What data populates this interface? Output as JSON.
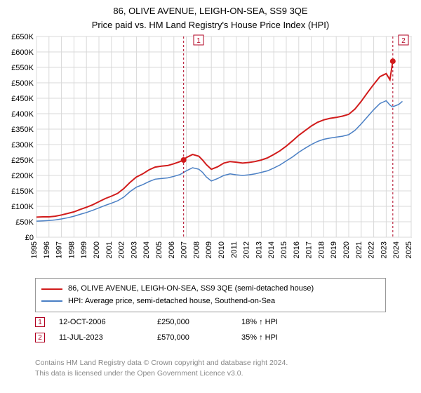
{
  "title": {
    "line1": "86, OLIVE AVENUE, LEIGH-ON-SEA, SS9 3QE",
    "line2": "Price paid vs. HM Land Registry's House Price Index (HPI)"
  },
  "chart": {
    "type": "line",
    "background_color": "#ffffff",
    "grid_color": "#d8d8d8",
    "x": {
      "min": 1995,
      "max": 2025,
      "tick_step": 1,
      "ticks": [
        1995,
        1996,
        1997,
        1998,
        1999,
        2000,
        2001,
        2002,
        2003,
        2004,
        2005,
        2006,
        2007,
        2008,
        2009,
        2010,
        2011,
        2012,
        2013,
        2014,
        2015,
        2016,
        2017,
        2018,
        2019,
        2020,
        2021,
        2022,
        2023,
        2024,
        2025
      ]
    },
    "y": {
      "min": 0,
      "max": 650000,
      "tick_step": 50000,
      "ticks": [
        0,
        50000,
        100000,
        150000,
        200000,
        250000,
        300000,
        350000,
        400000,
        450000,
        500000,
        550000,
        600000,
        650000
      ],
      "labels": [
        "£0",
        "£50K",
        "£100K",
        "£150K",
        "£200K",
        "£250K",
        "£300K",
        "£350K",
        "£400K",
        "£450K",
        "£500K",
        "£550K",
        "£600K",
        "£650K"
      ]
    },
    "series": [
      {
        "key": "property",
        "label": "86, OLIVE AVENUE, LEIGH-ON-SEA, SS9 3QE (semi-detached house)",
        "color": "#d11b1b",
        "line_width": 2,
        "data": [
          [
            1995.0,
            65000
          ],
          [
            1995.5,
            66000
          ],
          [
            1996.0,
            66000
          ],
          [
            1996.5,
            68000
          ],
          [
            1997.0,
            72000
          ],
          [
            1997.5,
            77000
          ],
          [
            1998.0,
            82000
          ],
          [
            1998.5,
            90000
          ],
          [
            1999.0,
            97000
          ],
          [
            1999.5,
            105000
          ],
          [
            2000.0,
            115000
          ],
          [
            2000.5,
            125000
          ],
          [
            2001.0,
            133000
          ],
          [
            2001.5,
            142000
          ],
          [
            2002.0,
            158000
          ],
          [
            2002.5,
            178000
          ],
          [
            2003.0,
            195000
          ],
          [
            2003.5,
            205000
          ],
          [
            2004.0,
            218000
          ],
          [
            2004.5,
            227000
          ],
          [
            2005.0,
            230000
          ],
          [
            2005.5,
            232000
          ],
          [
            2006.0,
            238000
          ],
          [
            2006.5,
            245000
          ],
          [
            2006.78,
            250000
          ],
          [
            2007.0,
            258000
          ],
          [
            2007.5,
            268000
          ],
          [
            2008.0,
            262000
          ],
          [
            2008.3,
            250000
          ],
          [
            2008.6,
            235000
          ],
          [
            2009.0,
            220000
          ],
          [
            2009.5,
            228000
          ],
          [
            2010.0,
            240000
          ],
          [
            2010.5,
            245000
          ],
          [
            2011.0,
            243000
          ],
          [
            2011.5,
            240000
          ],
          [
            2012.0,
            242000
          ],
          [
            2012.5,
            245000
          ],
          [
            2013.0,
            250000
          ],
          [
            2013.5,
            257000
          ],
          [
            2014.0,
            268000
          ],
          [
            2014.5,
            280000
          ],
          [
            2015.0,
            295000
          ],
          [
            2015.5,
            312000
          ],
          [
            2016.0,
            330000
          ],
          [
            2016.5,
            345000
          ],
          [
            2017.0,
            360000
          ],
          [
            2017.5,
            372000
          ],
          [
            2018.0,
            380000
          ],
          [
            2018.5,
            385000
          ],
          [
            2019.0,
            388000
          ],
          [
            2019.5,
            392000
          ],
          [
            2020.0,
            398000
          ],
          [
            2020.5,
            415000
          ],
          [
            2021.0,
            440000
          ],
          [
            2021.5,
            468000
          ],
          [
            2022.0,
            495000
          ],
          [
            2022.5,
            520000
          ],
          [
            2023.0,
            530000
          ],
          [
            2023.3,
            510000
          ],
          [
            2023.53,
            570000
          ]
        ]
      },
      {
        "key": "hpi",
        "label": "HPI: Average price, semi-detached house, Southend-on-Sea",
        "color": "#4a7fc4",
        "line_width": 1.5,
        "data": [
          [
            1995.0,
            52000
          ],
          [
            1995.5,
            53000
          ],
          [
            1996.0,
            54000
          ],
          [
            1996.5,
            56000
          ],
          [
            1997.0,
            59000
          ],
          [
            1997.5,
            63000
          ],
          [
            1998.0,
            68000
          ],
          [
            1998.5,
            74000
          ],
          [
            1999.0,
            80000
          ],
          [
            1999.5,
            87000
          ],
          [
            2000.0,
            95000
          ],
          [
            2000.5,
            103000
          ],
          [
            2001.0,
            110000
          ],
          [
            2001.5,
            118000
          ],
          [
            2002.0,
            130000
          ],
          [
            2002.5,
            148000
          ],
          [
            2003.0,
            162000
          ],
          [
            2003.5,
            170000
          ],
          [
            2004.0,
            180000
          ],
          [
            2004.5,
            188000
          ],
          [
            2005.0,
            190000
          ],
          [
            2005.5,
            192000
          ],
          [
            2006.0,
            197000
          ],
          [
            2006.5,
            203000
          ],
          [
            2007.0,
            215000
          ],
          [
            2007.5,
            225000
          ],
          [
            2008.0,
            220000
          ],
          [
            2008.3,
            210000
          ],
          [
            2008.6,
            195000
          ],
          [
            2009.0,
            182000
          ],
          [
            2009.5,
            190000
          ],
          [
            2010.0,
            200000
          ],
          [
            2010.5,
            205000
          ],
          [
            2011.0,
            202000
          ],
          [
            2011.5,
            200000
          ],
          [
            2012.0,
            202000
          ],
          [
            2012.5,
            205000
          ],
          [
            2013.0,
            210000
          ],
          [
            2013.5,
            215000
          ],
          [
            2014.0,
            224000
          ],
          [
            2014.5,
            234000
          ],
          [
            2015.0,
            247000
          ],
          [
            2015.5,
            260000
          ],
          [
            2016.0,
            275000
          ],
          [
            2016.5,
            288000
          ],
          [
            2017.0,
            300000
          ],
          [
            2017.5,
            310000
          ],
          [
            2018.0,
            317000
          ],
          [
            2018.5,
            321000
          ],
          [
            2019.0,
            324000
          ],
          [
            2019.5,
            327000
          ],
          [
            2020.0,
            332000
          ],
          [
            2020.5,
            346000
          ],
          [
            2021.0,
            367000
          ],
          [
            2021.5,
            390000
          ],
          [
            2022.0,
            413000
          ],
          [
            2022.5,
            433000
          ],
          [
            2023.0,
            442000
          ],
          [
            2023.3,
            428000
          ],
          [
            2023.5,
            422000
          ],
          [
            2024.0,
            430000
          ],
          [
            2024.3,
            440000
          ]
        ]
      }
    ],
    "markers": [
      {
        "n": 1,
        "x": 2006.78,
        "y": 250000,
        "box_side": "left",
        "box_x": 268,
        "box_y": 2
      },
      {
        "n": 2,
        "x": 2023.53,
        "y": 570000,
        "box_side": "right",
        "box_x": 560,
        "box_y": 2,
        "dot": true
      }
    ]
  },
  "legend": {
    "rows": [
      {
        "color": "#d11b1b",
        "label": "86, OLIVE AVENUE, LEIGH-ON-SEA, SS9 3QE (semi-detached house)"
      },
      {
        "color": "#4a7fc4",
        "label": "HPI: Average price, semi-detached house, Southend-on-Sea"
      }
    ]
  },
  "sales": [
    {
      "n": "1",
      "date": "12-OCT-2006",
      "price": "£250,000",
      "delta": "18% ↑ HPI"
    },
    {
      "n": "2",
      "date": "11-JUL-2023",
      "price": "£570,000",
      "delta": "35% ↑ HPI"
    }
  ],
  "footer": {
    "line1": "Contains HM Land Registry data © Crown copyright and database right 2024.",
    "line2": "This data is licensed under the Open Government Licence v3.0."
  }
}
